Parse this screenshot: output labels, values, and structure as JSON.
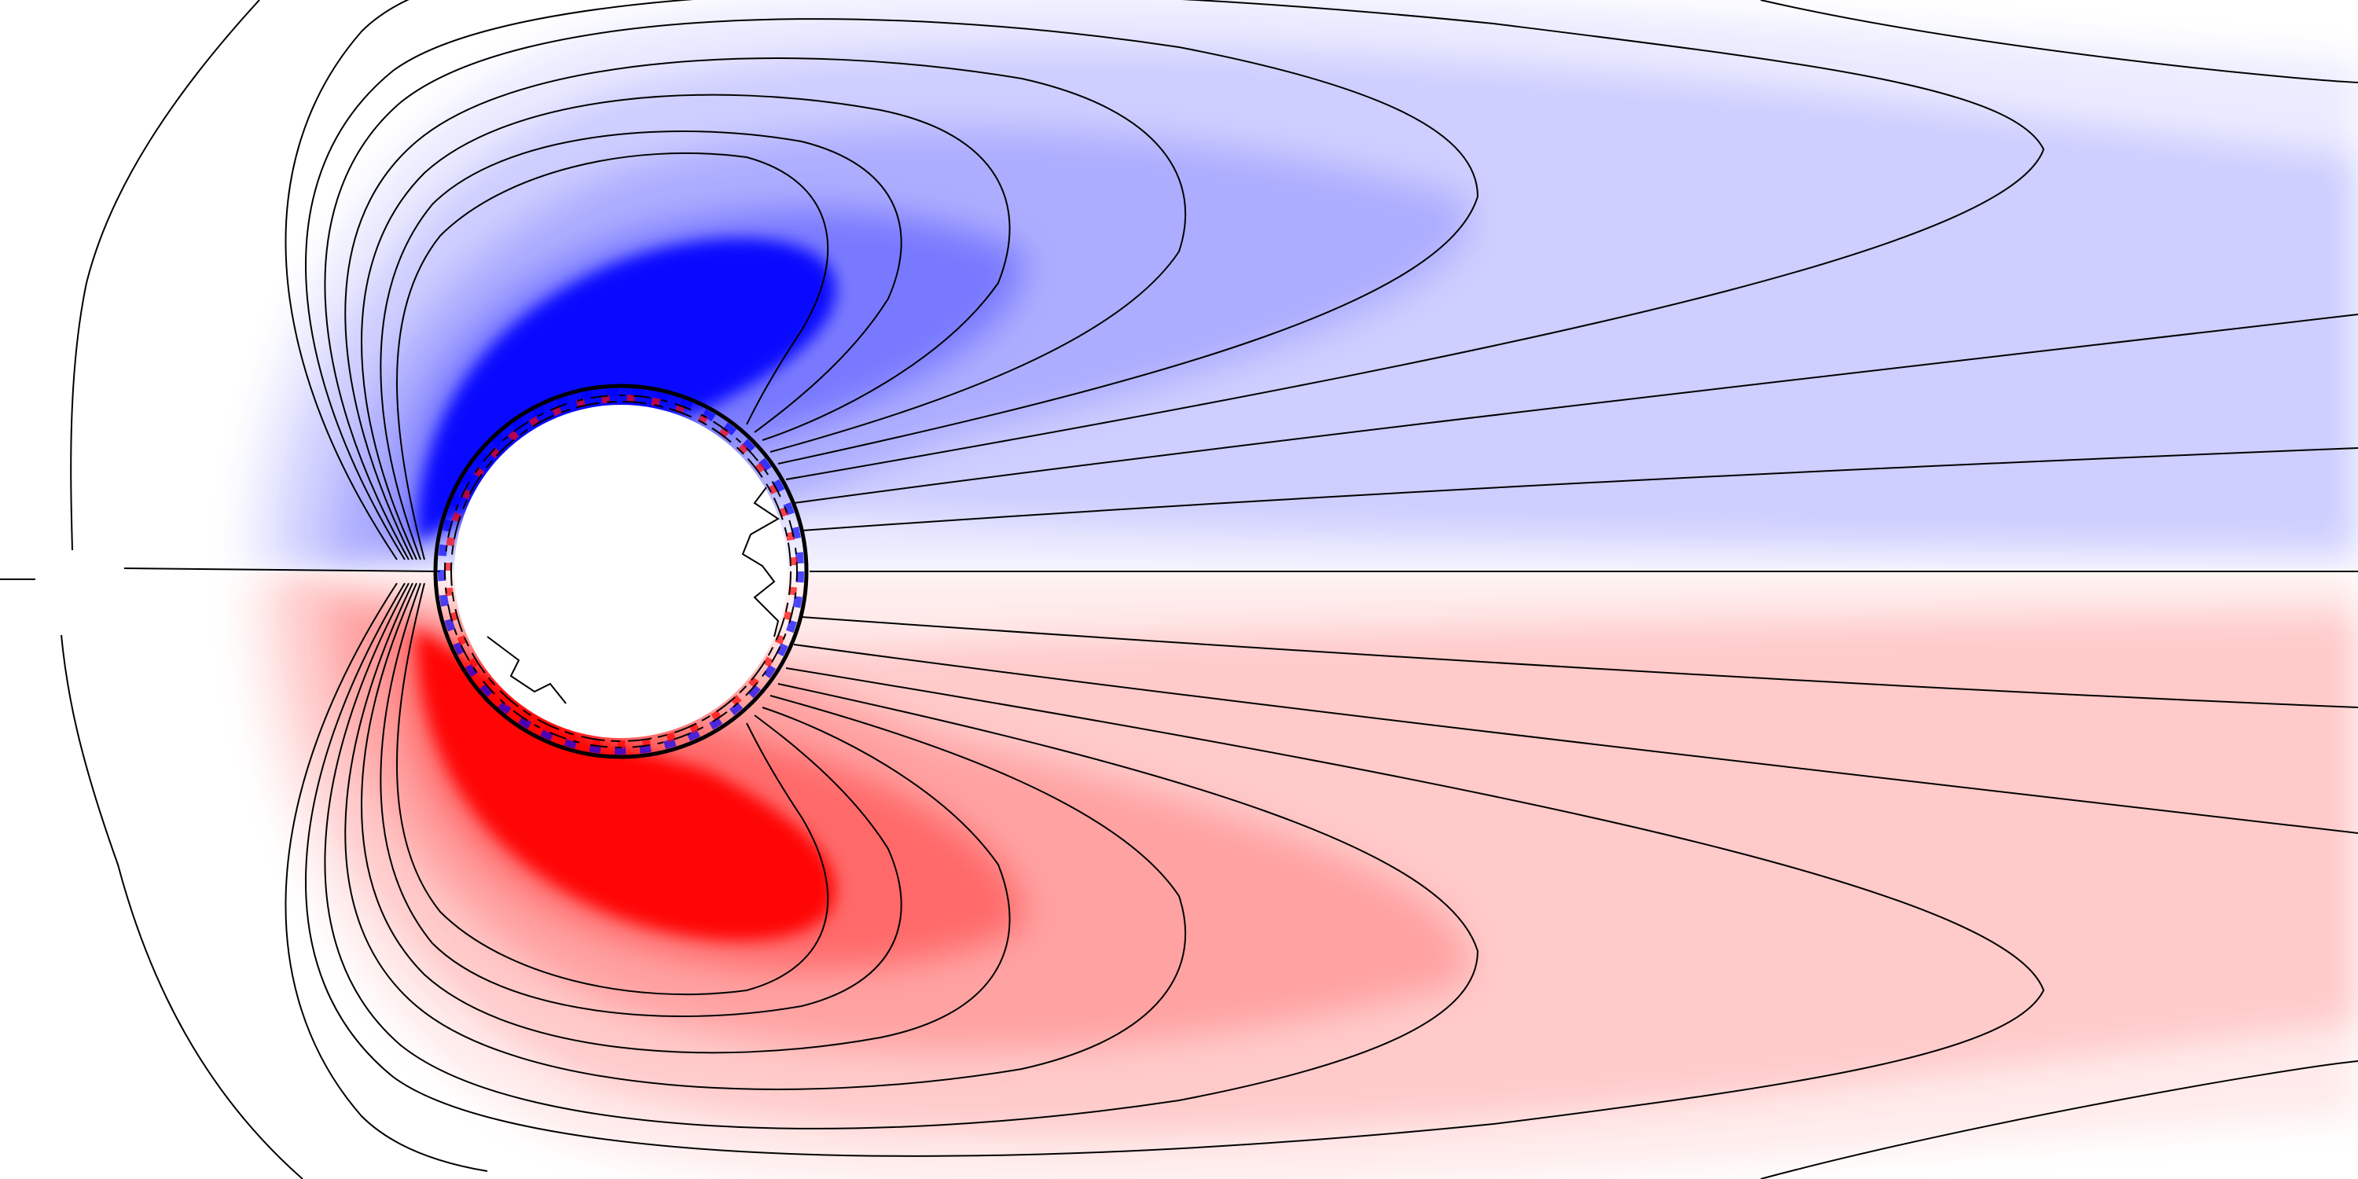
{
  "image": {
    "subject": "vorticity-contour-plot",
    "colors": {
      "background": "#ffffff",
      "negative": "#0000ff",
      "positive": "#ff0000",
      "contour": "#000000"
    }
  }
}
